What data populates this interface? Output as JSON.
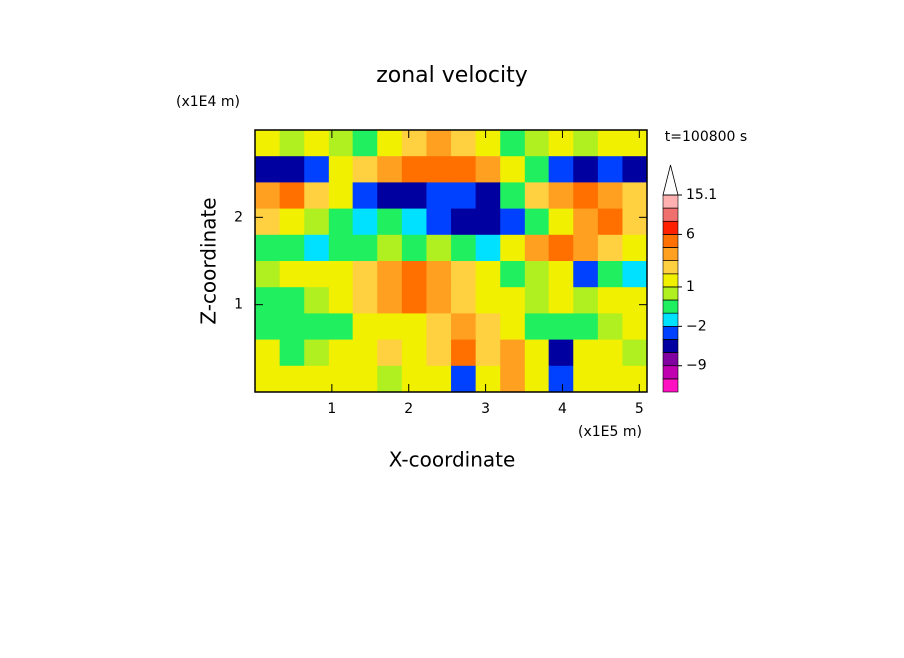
{
  "chart_data": {
    "type": "contour",
    "title": "zonal velocity",
    "x_label": "X-coordinate",
    "y_label": "Z-coordinate",
    "x_unit": "(x1E5 m)",
    "y_unit": "(x1E4 m)",
    "annotation": "t=100800 s",
    "xlim": [
      0,
      5.1
    ],
    "ylim": [
      0,
      3
    ],
    "xticks": [
      1,
      2,
      3,
      4,
      5
    ],
    "yticks": [
      1,
      2
    ],
    "x": [
      0.16,
      0.48,
      0.8,
      1.12,
      1.43,
      1.75,
      2.07,
      2.39,
      2.71,
      3.03,
      3.35,
      3.67,
      3.98,
      4.3,
      4.62,
      4.94
    ],
    "y": [
      2.85,
      2.55,
      2.25,
      1.95,
      1.65,
      1.35,
      1.05,
      0.75,
      0.45,
      0.15
    ],
    "z": [
      [
        1,
        0.5,
        1.5,
        0,
        -0.5,
        1,
        2,
        3,
        2.5,
        1,
        -0.5,
        0,
        1,
        0.5,
        1.5,
        1
      ],
      [
        -5,
        -5,
        -3,
        1,
        2,
        3,
        4,
        5,
        5,
        3,
        1,
        -0.5,
        -3,
        -5,
        -3,
        -5
      ],
      [
        3,
        4,
        2,
        1,
        -3,
        -5,
        -5,
        -4,
        -3,
        -5,
        -1,
        2,
        3,
        4,
        3,
        2
      ],
      [
        2,
        1,
        0.5,
        -1,
        -1.5,
        -1,
        -2,
        -3,
        -5,
        -5,
        -3,
        -1,
        1,
        3,
        4,
        2
      ],
      [
        -1,
        -1,
        -1.5,
        -0.5,
        -0.5,
        0.5,
        -0.5,
        0,
        -1,
        -2,
        1,
        3,
        4,
        3,
        2,
        1
      ],
      [
        0.5,
        1,
        1.5,
        1,
        2,
        3,
        4,
        3,
        2,
        1,
        -1,
        0.5,
        1,
        -3,
        -1,
        -2
      ],
      [
        -0.5,
        -0.5,
        0.5,
        1,
        2,
        3,
        4,
        3.5,
        2,
        1.5,
        1,
        0.5,
        1,
        0.5,
        1,
        1
      ],
      [
        -0.5,
        -0.5,
        -0.5,
        -0.5,
        1,
        1.5,
        1.5,
        2,
        3,
        2,
        1,
        -0.5,
        -0.5,
        -0.5,
        0.5,
        1
      ],
      [
        1,
        -0.5,
        0.5,
        1,
        1.5,
        2,
        1,
        2,
        4,
        2,
        3,
        1,
        -5,
        1,
        1,
        0.5
      ],
      [
        1.5,
        1,
        1.5,
        1,
        1,
        0.5,
        1,
        1,
        -4,
        1,
        3,
        1,
        -4,
        1,
        1.5,
        1
      ]
    ],
    "colorbar": {
      "levels": [
        -12,
        -9,
        -6,
        -4,
        -2,
        -1,
        0,
        1,
        2,
        3,
        4,
        6,
        9,
        12,
        15.1
      ],
      "colors": [
        "#ff10c0",
        "#c000b0",
        "#8000a0",
        "#0000a0",
        "#0040ff",
        "#00e0ff",
        "#20f060",
        "#b0f020",
        "#f0f000",
        "#ffd040",
        "#ffa020",
        "#ff7000",
        "#ff2000",
        "#f07070",
        "#ffb0b0",
        "#ffffff"
      ],
      "ticks": [
        {
          "value": -9,
          "label": "−9"
        },
        {
          "value": -2,
          "label": "−2"
        },
        1,
        6,
        15.1
      ]
    }
  }
}
